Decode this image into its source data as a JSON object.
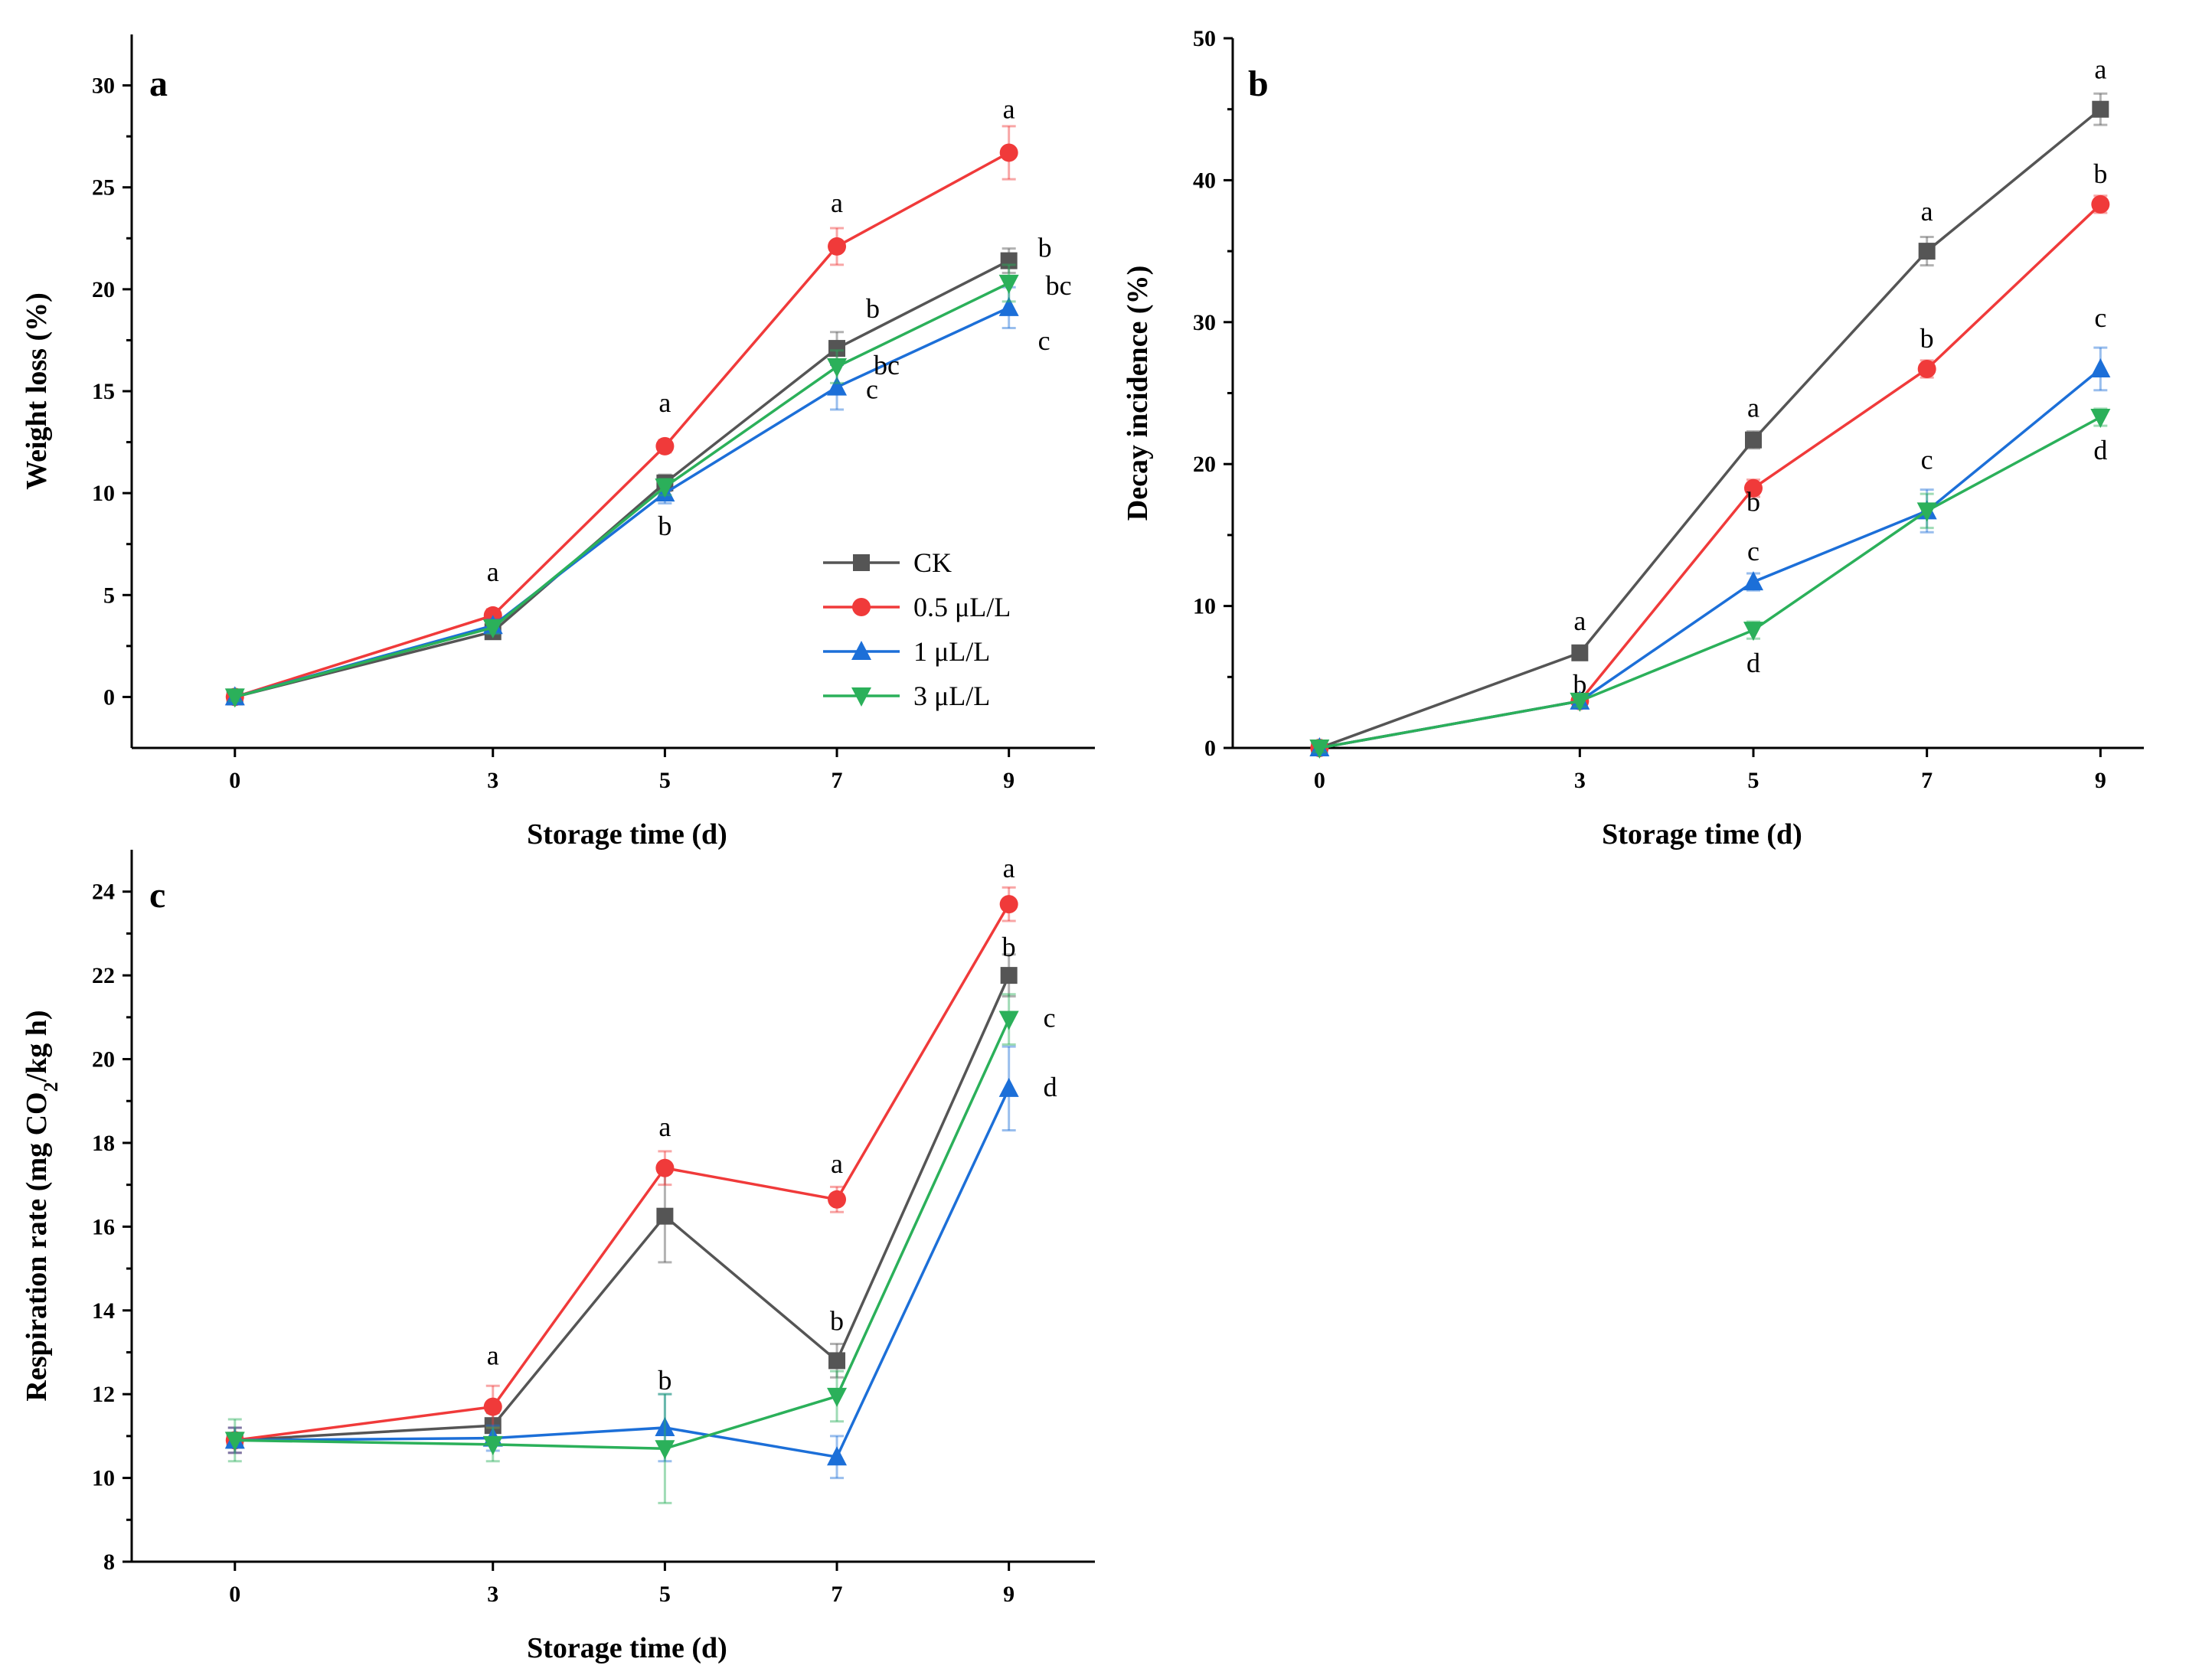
{
  "chart_data": [
    {
      "panel": "a",
      "type": "line",
      "x": [
        0,
        3,
        5,
        7,
        9
      ],
      "xlabel": "Storage time (d)",
      "ylabel": "Weight loss (%)",
      "xlim": [
        -1.2,
        10
      ],
      "ylim": [
        -2.5,
        32.5
      ],
      "yticks": [
        0,
        5,
        10,
        15,
        20,
        25,
        30
      ],
      "xticks": [
        0,
        3,
        5,
        7,
        9
      ],
      "legend": "bottom-right",
      "series": [
        {
          "name": "CK",
          "color": "#555555",
          "marker": "square",
          "values": [
            0,
            3.2,
            10.5,
            17.1,
            21.4
          ],
          "errors": [
            0.2,
            0.3,
            0.4,
            0.8,
            0.6
          ],
          "labels": [
            "",
            "",
            "",
            "b",
            "b"
          ]
        },
        {
          "name": "0.5 μL/L",
          "color": "#f03a3a",
          "marker": "circle",
          "values": [
            0,
            4.0,
            12.3,
            22.1,
            26.7
          ],
          "errors": [
            0.2,
            0.3,
            0.3,
            0.9,
            1.3
          ],
          "labels": [
            "",
            "a",
            "a",
            "a",
            "a"
          ]
        },
        {
          "name": "1 μL/L",
          "color": "#1c6fd8",
          "marker": "triangle-up",
          "values": [
            0,
            3.5,
            10.0,
            15.2,
            19.1
          ],
          "errors": [
            0.2,
            0.3,
            0.5,
            1.1,
            1.0
          ],
          "labels": [
            "",
            "",
            "b",
            "c",
            "c"
          ]
        },
        {
          "name": "3 μL/L",
          "color": "#2bb05a",
          "marker": "triangle-down",
          "values": [
            0,
            3.4,
            10.3,
            16.2,
            20.3
          ],
          "errors": [
            0.2,
            0.3,
            0.4,
            0.8,
            0.9
          ],
          "labels": [
            "",
            "",
            "",
            "bc",
            "bc"
          ]
        }
      ]
    },
    {
      "panel": "b",
      "type": "line",
      "x": [
        0,
        3,
        5,
        7,
        9
      ],
      "xlabel": "Storage time (d)",
      "ylabel": "Decay incidence (%)",
      "xlim": [
        -1,
        9.5
      ],
      "ylim": [
        0,
        50
      ],
      "yticks": [
        0,
        10,
        20,
        30,
        40,
        50
      ],
      "xticks": [
        0,
        3,
        5,
        7,
        9
      ],
      "series": [
        {
          "name": "CK",
          "color": "#555555",
          "marker": "square",
          "values": [
            0,
            6.7,
            21.7,
            35.0,
            45.0
          ],
          "errors": [
            0.3,
            0.4,
            0.6,
            1.0,
            1.1
          ],
          "labels": [
            "",
            "a",
            "a",
            "a",
            "a"
          ]
        },
        {
          "name": "0.5 μL/L",
          "color": "#f03a3a",
          "marker": "circle",
          "values": [
            0,
            3.3,
            18.3,
            26.7,
            38.3
          ],
          "errors": [
            0.3,
            0.4,
            0.6,
            0.6,
            0.6
          ],
          "labels": [
            "",
            "b",
            "b",
            "b",
            "b"
          ]
        },
        {
          "name": "1 μL/L",
          "color": "#1c6fd8",
          "marker": "triangle-up",
          "values": [
            0,
            3.3,
            11.7,
            16.7,
            26.7
          ],
          "errors": [
            0.3,
            0.4,
            0.6,
            1.5,
            1.5
          ],
          "labels": [
            "",
            "",
            "c",
            "c",
            "c"
          ]
        },
        {
          "name": "3 μL/L",
          "color": "#2bb05a",
          "marker": "triangle-down",
          "values": [
            0,
            3.3,
            8.3,
            16.7,
            23.3
          ],
          "errors": [
            0.3,
            0.4,
            0.6,
            1.2,
            0.6
          ],
          "labels": [
            "",
            "",
            "d",
            "",
            "d"
          ]
        }
      ]
    },
    {
      "panel": "c",
      "type": "line",
      "x": [
        0,
        3,
        5,
        7,
        9
      ],
      "xlabel": "Storage time (d)",
      "ylabel_prefix": "Respiration rate (mg CO",
      "ylabel_sub": "2",
      "ylabel_suffix": "/kg h)",
      "xlim": [
        -1.2,
        10
      ],
      "ylim": [
        8,
        25
      ],
      "yticks": [
        8,
        10,
        12,
        14,
        16,
        18,
        20,
        22,
        24
      ],
      "xticks": [
        0,
        3,
        5,
        7,
        9
      ],
      "series": [
        {
          "name": "CK",
          "color": "#555555",
          "marker": "square",
          "values": [
            10.9,
            11.25,
            16.25,
            12.8,
            22.0
          ],
          "errors": [
            0.3,
            0.3,
            1.1,
            0.4,
            0.5
          ],
          "labels": [
            "",
            "",
            "",
            "b",
            "b"
          ]
        },
        {
          "name": "0.5 μL/L",
          "color": "#f03a3a",
          "marker": "circle",
          "values": [
            10.9,
            11.7,
            17.4,
            16.65,
            23.7
          ],
          "errors": [
            0.3,
            0.5,
            0.4,
            0.3,
            0.4
          ],
          "labels": [
            "",
            "a",
            "a",
            "a",
            "a"
          ]
        },
        {
          "name": "1 μL/L",
          "color": "#1c6fd8",
          "marker": "triangle-up",
          "values": [
            10.9,
            10.95,
            11.2,
            10.5,
            19.3
          ],
          "errors": [
            0.3,
            0.3,
            0.8,
            0.5,
            1.0
          ],
          "labels": [
            "",
            "",
            "b",
            "",
            "d"
          ]
        },
        {
          "name": "3 μL/L",
          "color": "#2bb05a",
          "marker": "triangle-down",
          "values": [
            10.9,
            10.8,
            10.7,
            11.95,
            20.95
          ],
          "errors": [
            0.5,
            0.4,
            1.3,
            0.6,
            0.6
          ],
          "labels": [
            "",
            "",
            "",
            "",
            "c"
          ]
        }
      ]
    }
  ]
}
